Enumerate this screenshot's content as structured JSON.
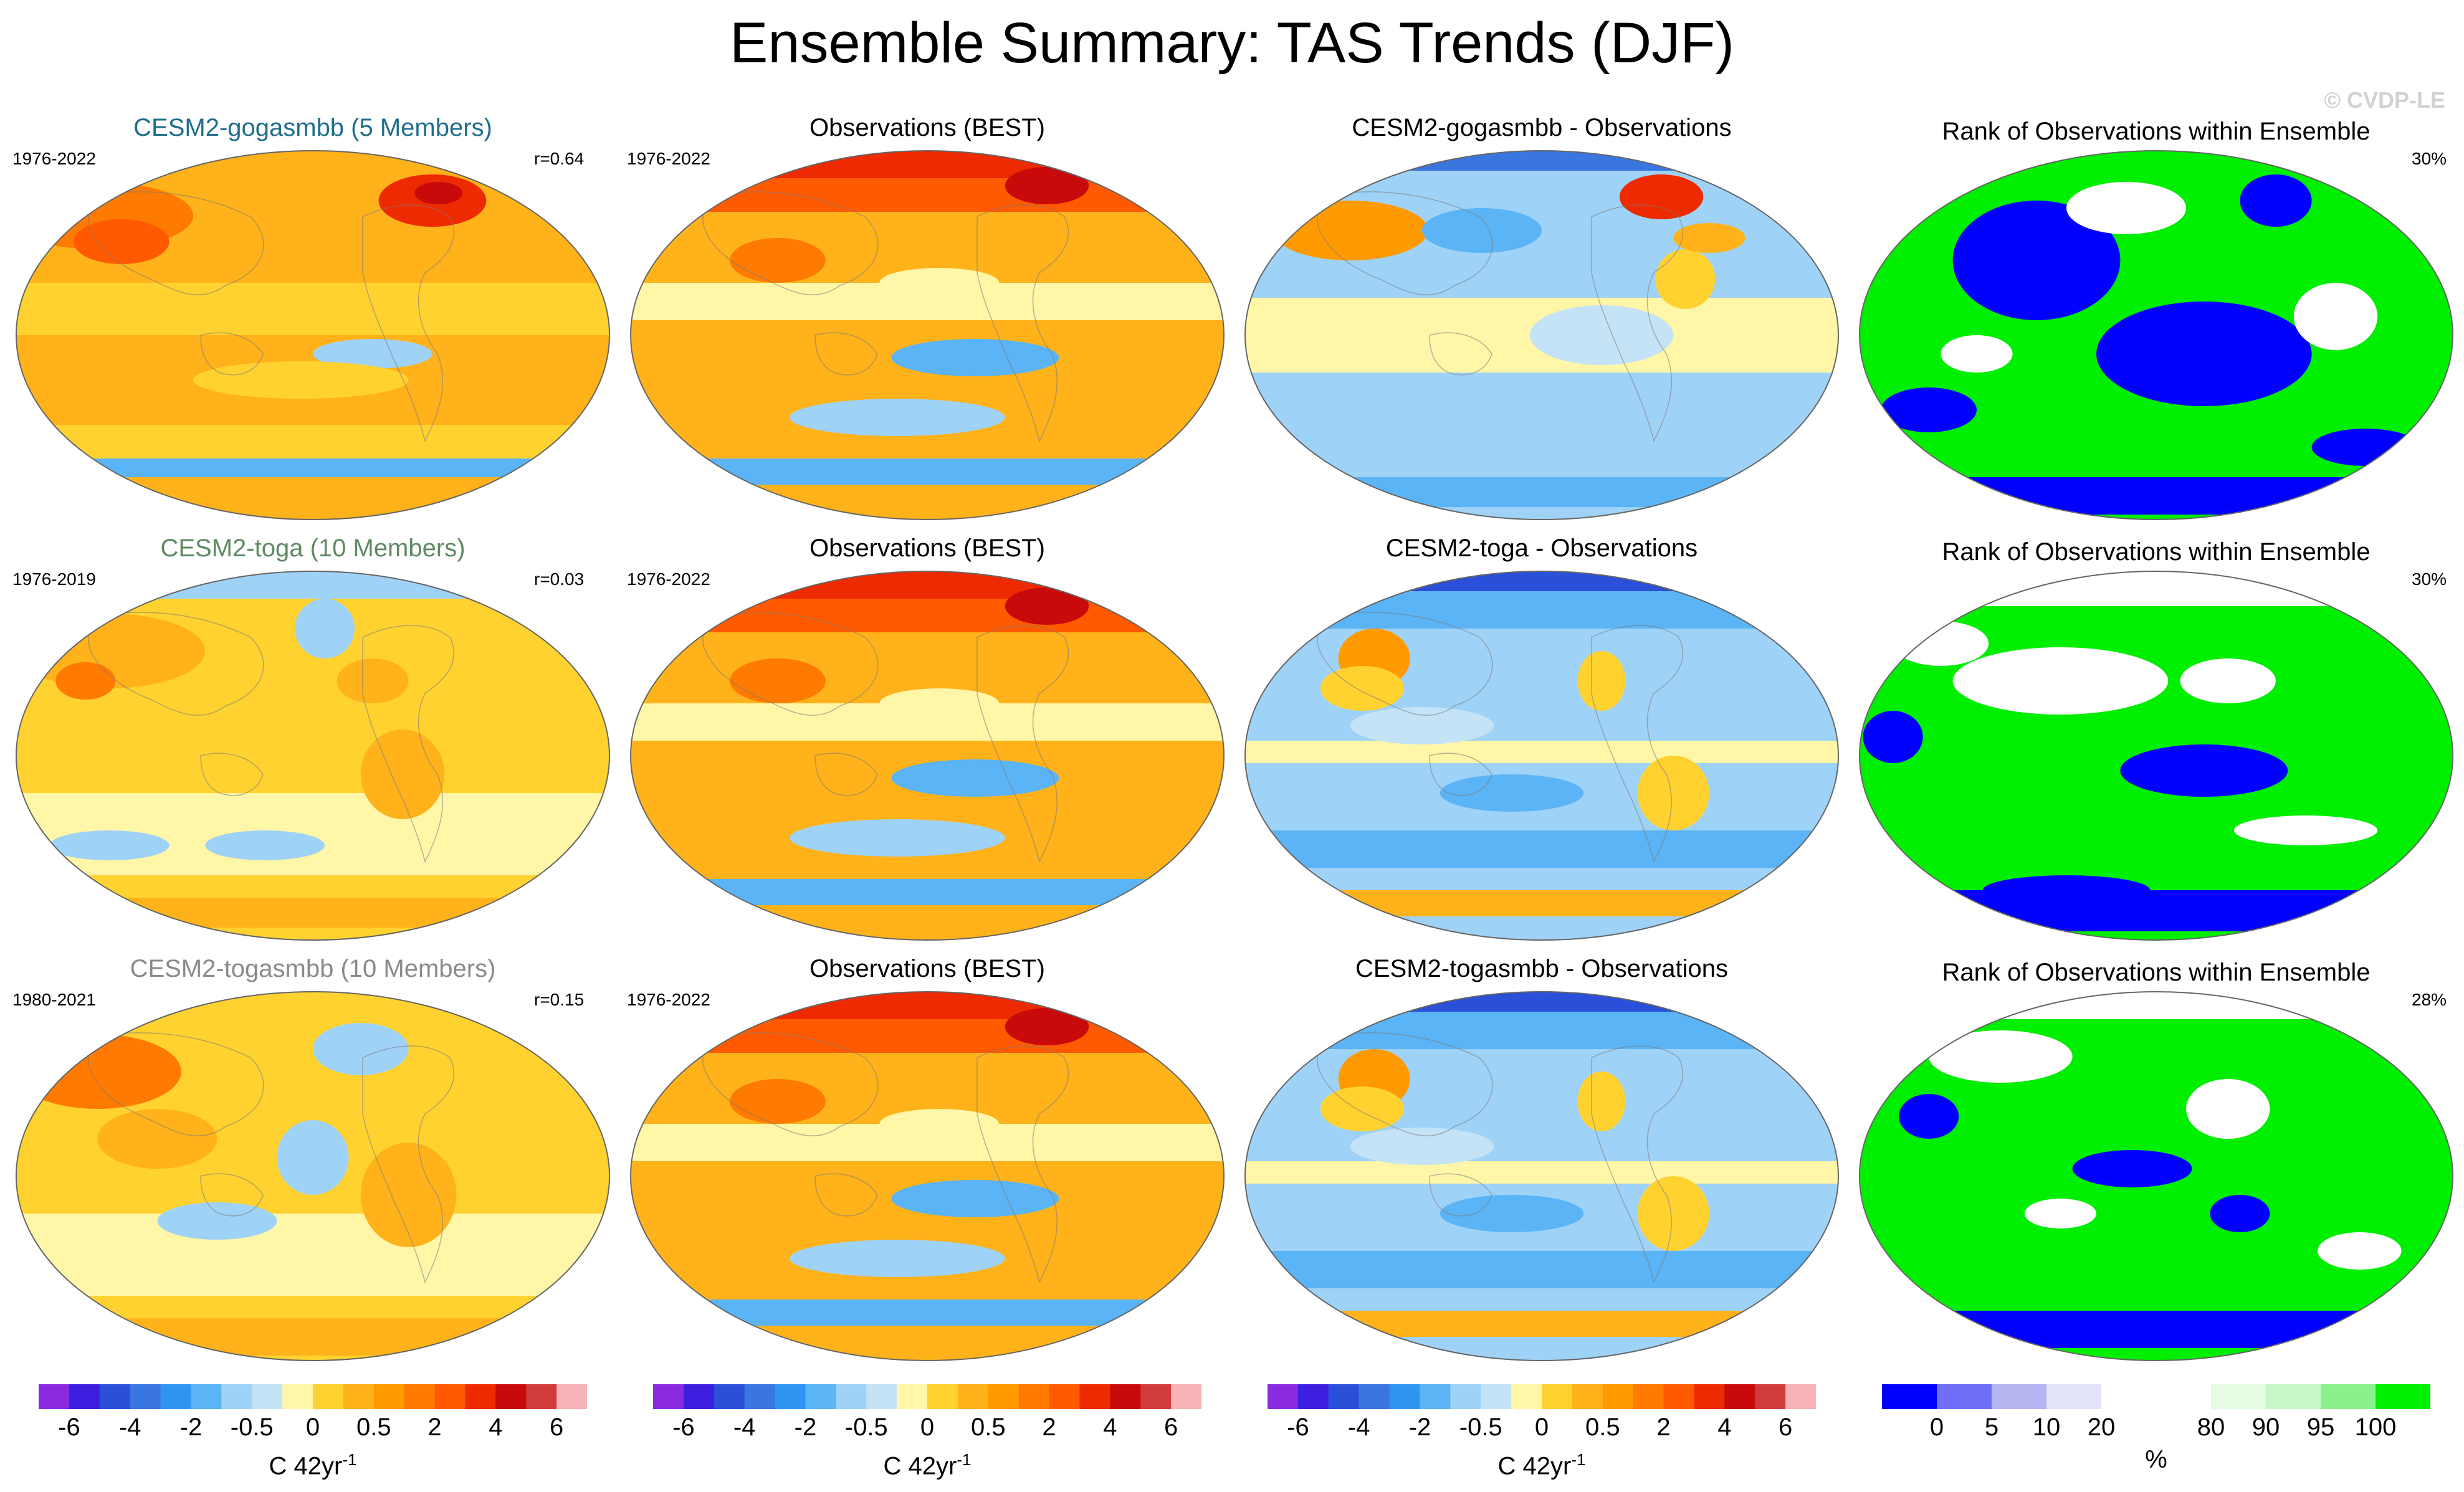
{
  "title": "Ensemble Summary: TAS Trends (DJF)",
  "watermark": "© CVDP-LE",
  "rows": [
    {
      "model": {
        "title": "CESM2-gogasmbb (5 Members)",
        "period": "1976-2022",
        "r": "r=0.64",
        "title_color": "#1f6e8c",
        "style": "warm"
      },
      "obs": {
        "title": "Observations (BEST)",
        "period": "1976-2022",
        "style": "obs"
      },
      "diff": {
        "title": "CESM2-gogasmbb - Observations",
        "style": "diffwarm"
      },
      "rank": {
        "title": "Rank of Observations within Ensemble",
        "pct": "30%",
        "style": "rank1"
      }
    },
    {
      "model": {
        "title": "CESM2-toga (10 Members)",
        "period": "1976-2019",
        "r": "r=0.03",
        "title_color": "#5e8a63",
        "style": "mild"
      },
      "obs": {
        "title": "Observations (BEST)",
        "period": "1976-2022",
        "style": "obs"
      },
      "diff": {
        "title": "CESM2-toga - Observations",
        "style": "diffcool"
      },
      "rank": {
        "title": "Rank of Observations within Ensemble",
        "pct": "30%",
        "style": "rank2"
      }
    },
    {
      "model": {
        "title": "CESM2-togasmbb (10 Members)",
        "period": "1980-2021",
        "r": "r=0.15",
        "title_color": "#8a8a8a",
        "style": "mild2"
      },
      "obs": {
        "title": "Observations (BEST)",
        "period": "1976-2022",
        "style": "obs"
      },
      "diff": {
        "title": "CESM2-togasmbb - Observations",
        "style": "diffcool"
      },
      "rank": {
        "title": "Rank of Observations within Ensemble",
        "pct": "28%",
        "style": "rank3"
      }
    }
  ],
  "trend_colorbar": {
    "colors": [
      "#8a2be2",
      "#3d1fe0",
      "#2a4fd8",
      "#3a76e0",
      "#2f95f0",
      "#5ab4f5",
      "#9fd2f7",
      "#c5e3f6",
      "#fff6a8",
      "#ffd230",
      "#ffb21a",
      "#ff9a00",
      "#ff7a00",
      "#ff5a00",
      "#ee2a00",
      "#c80a0a",
      "#d03c3c",
      "#f7b3b6"
    ],
    "ticks": [
      "-6",
      "-4",
      "-2",
      "-0.5",
      "0",
      "0.5",
      "2",
      "4",
      "6"
    ],
    "tick_bounds": [
      1,
      3,
      5,
      7,
      9,
      11,
      13,
      15,
      17
    ],
    "unit": "C 42yr",
    "unit_sup": "-1"
  },
  "rank_colorbar": {
    "colors": [
      "#0000ff",
      "#6e6ef7",
      "#b4b4f0",
      "#e2e2fb",
      "#ffffff",
      "#ffffff",
      "#e4fbe4",
      "#c7f7c7",
      "#8bf28b",
      "#00ee00"
    ],
    "ticks": [
      "0",
      "5",
      "10",
      "20",
      "80",
      "90",
      "95",
      "100"
    ],
    "tick_bounds": [
      1,
      2,
      3,
      4,
      6,
      7,
      8,
      9
    ],
    "unit": "%"
  }
}
